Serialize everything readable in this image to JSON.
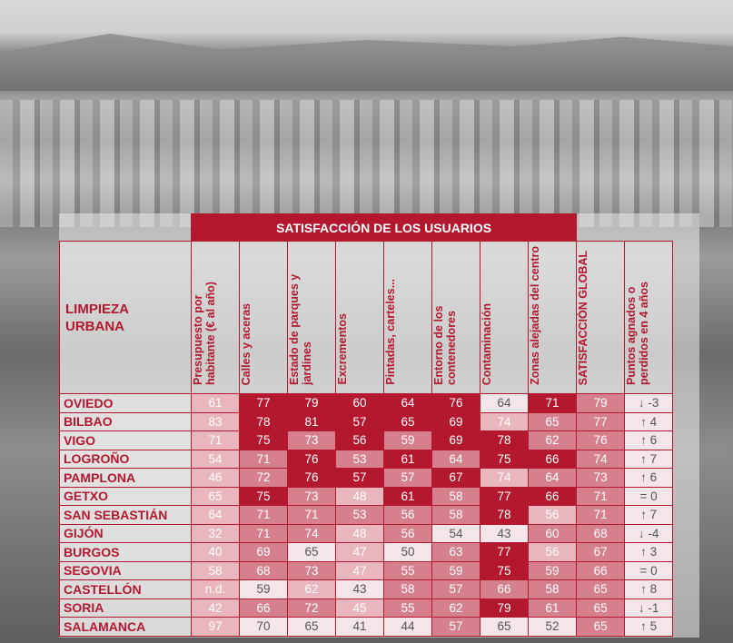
{
  "table": {
    "title": "SATISFACCIÓN DE LOS USUARIOS",
    "corner": "LIMPIEZA URBANA",
    "columns": [
      "Presupuesto por habitante (€ al año)",
      "Calles y aceras",
      "Estado de parques y jardines",
      "Excrementos",
      "Pintadas, carteles...",
      "Entorno de los contenedores",
      "Contaminación",
      "Zonas alejadas del centro",
      "SATISFACCIÓN GLOBAL",
      "Puntos agnados o perdidos en 4 años"
    ],
    "rows": [
      {
        "name": "OVIEDO",
        "cells": [
          "61",
          "77",
          "79",
          "60",
          "64",
          "76",
          "64",
          "71",
          "79",
          "↓ -3"
        ],
        "colors": [
          "#e9b6bd",
          "#b4182f",
          "#b4182f",
          "#b4182f",
          "#b4182f",
          "#b4182f",
          "#f4e6e8",
          "#b4182f",
          "#d5808c",
          "#f4e6e8"
        ]
      },
      {
        "name": "BILBAO",
        "cells": [
          "83",
          "78",
          "81",
          "57",
          "65",
          "69",
          "74",
          "65",
          "77",
          "↑ 4"
        ],
        "colors": [
          "#e9b6bd",
          "#b4182f",
          "#b4182f",
          "#b4182f",
          "#b4182f",
          "#b4182f",
          "#e9b6bd",
          "#d5808c",
          "#d5808c",
          "#f4e6e8"
        ]
      },
      {
        "name": "VIGO",
        "cells": [
          "71",
          "75",
          "73",
          "56",
          "59",
          "69",
          "78",
          "62",
          "76",
          "↑ 6"
        ],
        "colors": [
          "#e9b6bd",
          "#b4182f",
          "#d5808c",
          "#b4182f",
          "#d5808c",
          "#b4182f",
          "#b4182f",
          "#d5808c",
          "#d5808c",
          "#f4e6e8"
        ]
      },
      {
        "name": "LOGROÑO",
        "cells": [
          "54",
          "71",
          "76",
          "53",
          "61",
          "64",
          "75",
          "66",
          "74",
          "↑ 7"
        ],
        "colors": [
          "#e9b6bd",
          "#d5808c",
          "#b4182f",
          "#d5808c",
          "#b4182f",
          "#d5808c",
          "#b4182f",
          "#b4182f",
          "#d5808c",
          "#f4e6e8"
        ]
      },
      {
        "name": "PAMPLONA",
        "cells": [
          "46",
          "72",
          "76",
          "57",
          "57",
          "67",
          "74",
          "64",
          "73",
          "↑ 6"
        ],
        "colors": [
          "#e9b6bd",
          "#d5808c",
          "#b4182f",
          "#b4182f",
          "#d5808c",
          "#b4182f",
          "#e9b6bd",
          "#d5808c",
          "#d5808c",
          "#f4e6e8"
        ]
      },
      {
        "name": "GETXO",
        "cells": [
          "65",
          "75",
          "73",
          "48",
          "61",
          "58",
          "77",
          "66",
          "71",
          "= 0"
        ],
        "colors": [
          "#e9b6bd",
          "#b4182f",
          "#d5808c",
          "#e9b6bd",
          "#b4182f",
          "#d5808c",
          "#b4182f",
          "#b4182f",
          "#d5808c",
          "#f4e6e8"
        ]
      },
      {
        "name": "SAN SEBASTIÁN",
        "cells": [
          "64",
          "71",
          "71",
          "53",
          "56",
          "58",
          "78",
          "56",
          "71",
          "↑ 7"
        ],
        "colors": [
          "#e9b6bd",
          "#d5808c",
          "#d5808c",
          "#d5808c",
          "#d5808c",
          "#d5808c",
          "#b4182f",
          "#e9b6bd",
          "#d5808c",
          "#f4e6e8"
        ]
      },
      {
        "name": "GIJÓN",
        "cells": [
          "32",
          "71",
          "74",
          "48",
          "56",
          "54",
          "43",
          "60",
          "68",
          "↓ -4"
        ],
        "colors": [
          "#e9b6bd",
          "#d5808c",
          "#d5808c",
          "#e9b6bd",
          "#d5808c",
          "#f4e6e8",
          "#f4e6e8",
          "#d5808c",
          "#d5808c",
          "#f4e6e8"
        ]
      },
      {
        "name": "BURGOS",
        "cells": [
          "40",
          "69",
          "65",
          "47",
          "50",
          "63",
          "77",
          "56",
          "67",
          "↑ 3"
        ],
        "colors": [
          "#e9b6bd",
          "#d5808c",
          "#f4e6e8",
          "#e9b6bd",
          "#f4e6e8",
          "#d5808c",
          "#b4182f",
          "#e9b6bd",
          "#d5808c",
          "#f4e6e8"
        ]
      },
      {
        "name": "SEGOVIA",
        "cells": [
          "58",
          "68",
          "73",
          "47",
          "55",
          "59",
          "75",
          "59",
          "66",
          "= 0"
        ],
        "colors": [
          "#e9b6bd",
          "#d5808c",
          "#d5808c",
          "#e9b6bd",
          "#d5808c",
          "#d5808c",
          "#b4182f",
          "#d5808c",
          "#d5808c",
          "#f4e6e8"
        ]
      },
      {
        "name": "CASTELLÓN",
        "cells": [
          "n.d.",
          "59",
          "62",
          "43",
          "58",
          "57",
          "66",
          "58",
          "65",
          "↑ 8"
        ],
        "colors": [
          "#e9b6bd",
          "#f4e6e8",
          "#e9b6bd",
          "#f4e6e8",
          "#d5808c",
          "#d5808c",
          "#d5808c",
          "#d5808c",
          "#d5808c",
          "#f4e6e8"
        ]
      },
      {
        "name": "SORIA",
        "cells": [
          "42",
          "66",
          "72",
          "45",
          "55",
          "62",
          "79",
          "61",
          "65",
          "↓ -1"
        ],
        "colors": [
          "#e9b6bd",
          "#d5808c",
          "#d5808c",
          "#e9b6bd",
          "#d5808c",
          "#d5808c",
          "#b4182f",
          "#d5808c",
          "#d5808c",
          "#f4e6e8"
        ]
      },
      {
        "name": "SALAMANCA",
        "cells": [
          "97",
          "70",
          "65",
          "41",
          "44",
          "57",
          "65",
          "52",
          "65",
          "↑ 5"
        ],
        "colors": [
          "#e9b6bd",
          "#f4e6e8",
          "#f4e6e8",
          "#f4e6e8",
          "#f4e6e8",
          "#d5808c",
          "#f4e6e8",
          "#f4e6e8",
          "#d5808c",
          "#f4e6e8"
        ]
      }
    ]
  }
}
